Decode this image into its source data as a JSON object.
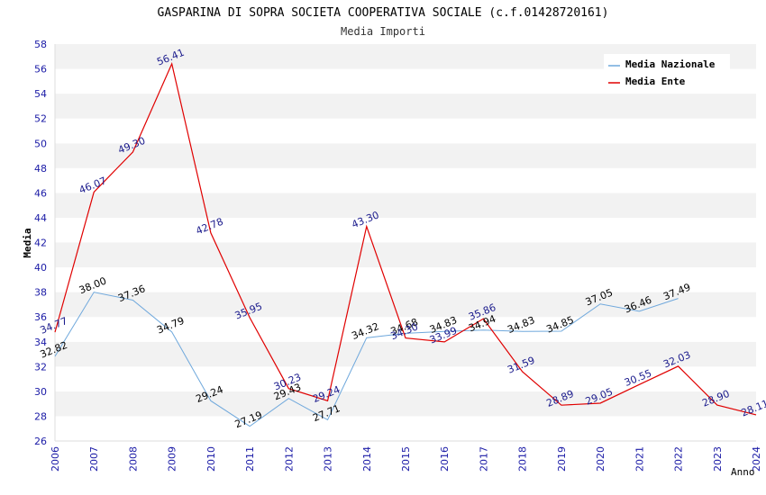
{
  "chart_data": {
    "type": "line",
    "title": "GASPARINA DI SOPRA SOCIETA COOPERATIVA SOCIALE (c.f.01428720161)",
    "subtitle": "Media Importi",
    "xlabel": "Anno",
    "ylabel": "Media",
    "ylim": [
      26,
      58
    ],
    "ytick_step": 2,
    "x": [
      2006,
      2007,
      2008,
      2009,
      2010,
      2011,
      2012,
      2013,
      2014,
      2015,
      2016,
      2017,
      2018,
      2019,
      2020,
      2021,
      2022,
      2023,
      2024
    ],
    "legend_position": "top-right",
    "grid": "horizontal alternating bands",
    "series": [
      {
        "name": "Media Nazionale",
        "color": "#6fa8dc",
        "label_color": "#000000",
        "values": [
          32.82,
          38.0,
          37.36,
          34.79,
          29.24,
          27.19,
          29.43,
          27.71,
          34.32,
          34.68,
          34.83,
          34.94,
          34.83,
          34.85,
          37.05,
          36.46,
          37.49,
          null,
          null
        ],
        "labels": [
          "32.82",
          "38.00",
          "37.36",
          "34.79",
          "29.24",
          "27.19",
          "29.43",
          "27.71",
          "34.32",
          "34.68",
          "34.83",
          "34.94",
          "34.83",
          "34.85",
          "37.05",
          "36.46",
          "37.49",
          null,
          null
        ]
      },
      {
        "name": "Media Ente",
        "color": "#e00000",
        "label_color": "#1a1a8c",
        "values": [
          34.77,
          46.07,
          49.3,
          56.41,
          42.78,
          35.95,
          30.23,
          29.24,
          43.3,
          34.3,
          33.99,
          35.86,
          31.59,
          28.89,
          29.05,
          30.55,
          32.03,
          28.9,
          28.11
        ],
        "labels": [
          "34.77",
          "46.07",
          "49.30",
          "56.41",
          "42.78",
          "35.95",
          "30.23",
          "29.24",
          "43.30",
          "34.30",
          "33.99",
          "35.86",
          "31.59",
          "28.89",
          "29.05",
          "30.55",
          "32.03",
          "28.90",
          "28.11"
        ]
      }
    ]
  }
}
